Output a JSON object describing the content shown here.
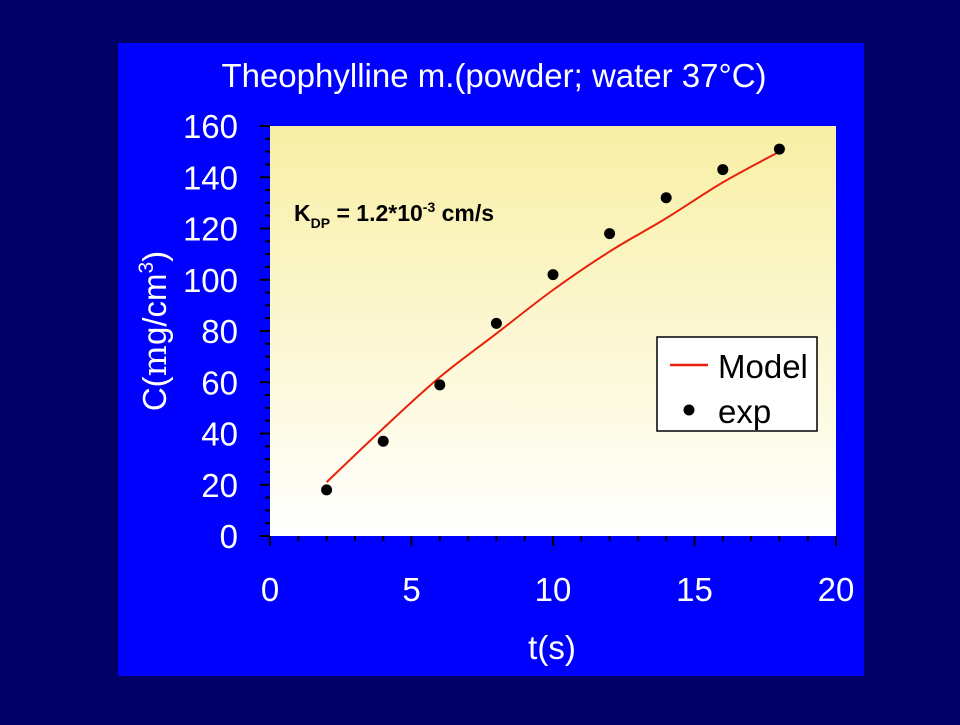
{
  "colors": {
    "slide_background": "#000066",
    "panel": "#0000FF",
    "plot_gradient_top": "#F8EFA4",
    "plot_gradient_bottom": "#FFFFFF",
    "model_line": "#E8220A",
    "points": "#000000",
    "text": "#FFFFFF"
  },
  "chart_data": {
    "type": "scatter",
    "title": "Theophylline m.(powder; water 37°C)",
    "xlabel": "t(s)",
    "ylabel": {
      "prefix": "C(",
      "mu": "m",
      "unit": "g/cm",
      "sup": "3",
      "suffix": ")"
    },
    "xlim": [
      0,
      20
    ],
    "ylim": [
      0,
      160
    ],
    "x_ticks": [
      "0",
      "5",
      "10",
      "15",
      "20"
    ],
    "y_ticks": [
      "0",
      "20",
      "40",
      "60",
      "80",
      "100",
      "120",
      "140",
      "160"
    ],
    "grid": false,
    "legend_position": "right",
    "annotation": {
      "k": "K",
      "sub": "DP",
      "mid": " = 1.2*10",
      "exp": "-3",
      "unit": " cm/s"
    },
    "series": [
      {
        "name": "Model",
        "kind": "line",
        "x": [
          2,
          4,
          6,
          8,
          10,
          12,
          14,
          16,
          18
        ],
        "y": [
          21,
          42,
          62,
          79,
          96,
          111,
          124,
          138,
          150
        ]
      },
      {
        "name": "exp",
        "kind": "points",
        "x": [
          2,
          4,
          6,
          8,
          10,
          12,
          14,
          16,
          18
        ],
        "y": [
          18,
          37,
          59,
          83,
          102,
          118,
          132,
          143,
          151
        ]
      }
    ]
  }
}
